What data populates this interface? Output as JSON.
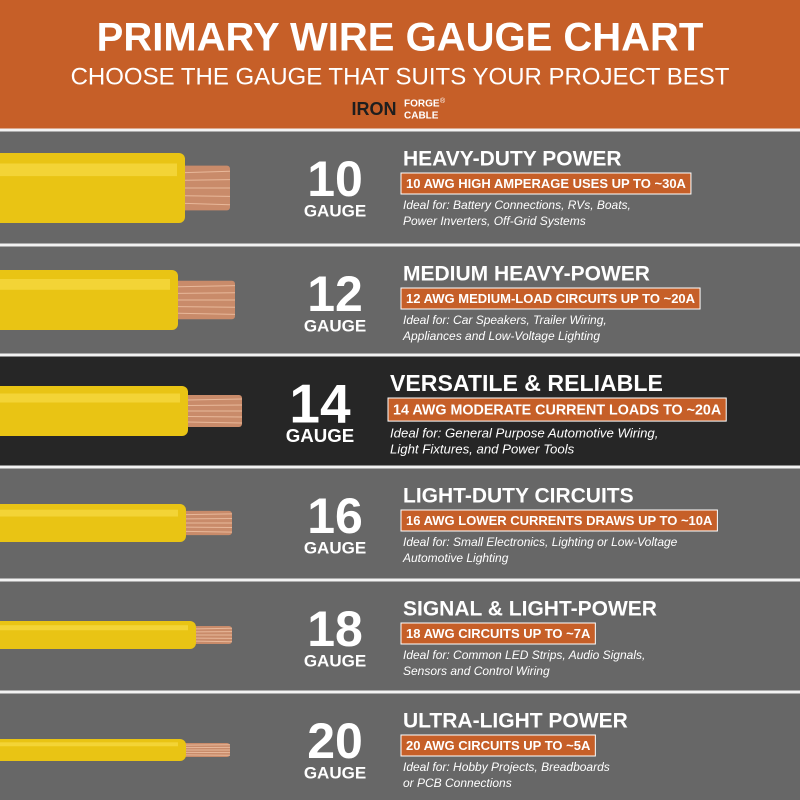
{
  "header": {
    "title": "PRIMARY WIRE GAUGE CHART",
    "subtitle": "CHOOSE THE GAUGE THAT SUITS YOUR PROJECT BEST",
    "logo": {
      "iron": "IRON",
      "forge": "FORGE",
      "registered": "®",
      "cable": "CABLE"
    }
  },
  "rows": [
    {
      "gauge": "10",
      "unit": "GAUGE",
      "title": "HEAVY-DUTY POWER",
      "badge": "10 AWG HIGH AMPERAGE USES UP TO ~30A",
      "ideal": [
        "Ideal for: Battery Connections, RVs, Boats,",
        "Power Inverters, Off-Grid Systems"
      ]
    },
    {
      "gauge": "12",
      "unit": "GAUGE",
      "title": "MEDIUM HEAVY-POWER",
      "badge": "12 AWG MEDIUM-LOAD CIRCUITS UP TO ~20A",
      "ideal": [
        "Ideal for: Car Speakers, Trailer Wiring,",
        "Appliances and Low-Voltage Lighting"
      ]
    },
    {
      "gauge": "14",
      "unit": "GAUGE",
      "title": "VERSATILE & RELIABLE",
      "badge": "14 AWG MODERATE CURRENT LOADS TO ~20A",
      "ideal": [
        "Ideal for: General Purpose Automotive Wiring,",
        "Light Fixtures, and Power Tools"
      ]
    },
    {
      "gauge": "16",
      "unit": "GAUGE",
      "title": "LIGHT-DUTY CIRCUITS",
      "badge": "16 AWG LOWER CURRENTS DRAWS UP TO ~10A",
      "ideal": [
        "Ideal for: Small Electronics, Lighting or Low-Voltage",
        "Automotive Lighting"
      ]
    },
    {
      "gauge": "18",
      "unit": "GAUGE",
      "title": "SIGNAL & LIGHT-POWER",
      "badge": "18 AWG CIRCUITS UP TO ~7A",
      "ideal": [
        "Ideal for: Common LED Strips, Audio Signals,",
        "Sensors and Control Wiring"
      ]
    },
    {
      "gauge": "20",
      "unit": "GAUGE",
      "title": "ULTRA-LIGHT POWER",
      "badge": "20 AWG CIRCUITS UP TO ~5A",
      "ideal": [
        "Ideal for: Hobby Projects, Breadboards",
        "or PCB Connections"
      ]
    }
  ]
}
